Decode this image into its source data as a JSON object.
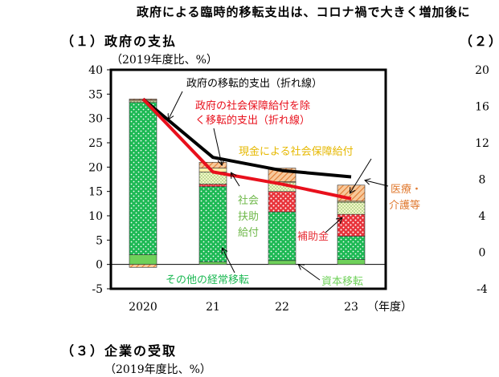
{
  "header": {
    "headline": "政府による臨時的移転支出は、コロナ禍で大きく増加後に",
    "section1": "（１）政府の支払",
    "section2": "（２）",
    "section3": "（３）企業の受取",
    "unit1": "（2019年度比、%）",
    "unit3": "（2019年度比、%）"
  },
  "colors": {
    "other_current": "#1db954",
    "capital": "#6fd15a",
    "subsidy": "#e8333a",
    "social_assist": "#f3f5c8",
    "social_benefit_cash": "#fff0a8",
    "medical_care": "#f0a060",
    "line_black": "#000000",
    "line_red": "#e8101c"
  },
  "chart_data": {
    "type": "bar",
    "stacked": true,
    "categories": [
      "2020",
      "21",
      "22",
      "23"
    ],
    "xlabel": "（年度）",
    "ylim": [
      -5,
      40
    ],
    "yticks": [
      -5,
      0,
      5,
      10,
      15,
      20,
      25,
      30,
      35,
      40
    ],
    "right_yticks": [
      -4,
      0,
      4,
      8,
      12,
      16,
      20
    ],
    "series": [
      {
        "name": "資本移転",
        "color_key": "capital",
        "values": [
          2.0,
          0.5,
          0.8,
          1.0
        ]
      },
      {
        "name": "その他の経常移転",
        "color_key": "other_current",
        "values": [
          31.3,
          15.5,
          10.0,
          4.8
        ]
      },
      {
        "name": "補助金",
        "color_key": "subsidy",
        "values": [
          0.0,
          0.5,
          4.2,
          4.5
        ]
      },
      {
        "name": "社会扶助給付",
        "color_key": "social_assist",
        "values": [
          0.3,
          2.5,
          1.8,
          2.5
        ]
      },
      {
        "name": "現金による社会保障給付",
        "color_key": "social_benefit_cash",
        "values": [
          0.2,
          0.8,
          0.2,
          0.2
        ]
      },
      {
        "name": "医療・介護等",
        "color_key": "medical_care",
        "values": [
          0.2,
          1.2,
          2.8,
          3.3
        ]
      }
    ],
    "negatives": [
      {
        "name": "医療・介護等",
        "color_key": "medical_care",
        "values": [
          -0.6,
          0.0,
          0.0,
          0.0
        ]
      }
    ],
    "lines": [
      {
        "name": "政府の移転的支出（折れ線）",
        "color_key": "line_black",
        "values": [
          34.0,
          22.0,
          19.3,
          18.0
        ]
      },
      {
        "name": "政府の社会保障給付を除く移転的支出（折れ線）",
        "color_key": "line_red",
        "values": [
          34.0,
          19.0,
          16.5,
          13.5
        ]
      }
    ],
    "annotations": {
      "black_line": "政府の移転的支出（折れ線）",
      "red_line_1": "政府の社会保障給付を除",
      "red_line_2": "く移転的支出（折れ線）",
      "cash_benefit": "現金による社会保障給付",
      "medical_1": "医療・",
      "medical_2": "介護等",
      "assist_1": "社会",
      "assist_2": "扶助",
      "assist_3": "給付",
      "subsidy": "補助金",
      "other_current": "その他の経常移転",
      "capital": "資本移転"
    }
  }
}
